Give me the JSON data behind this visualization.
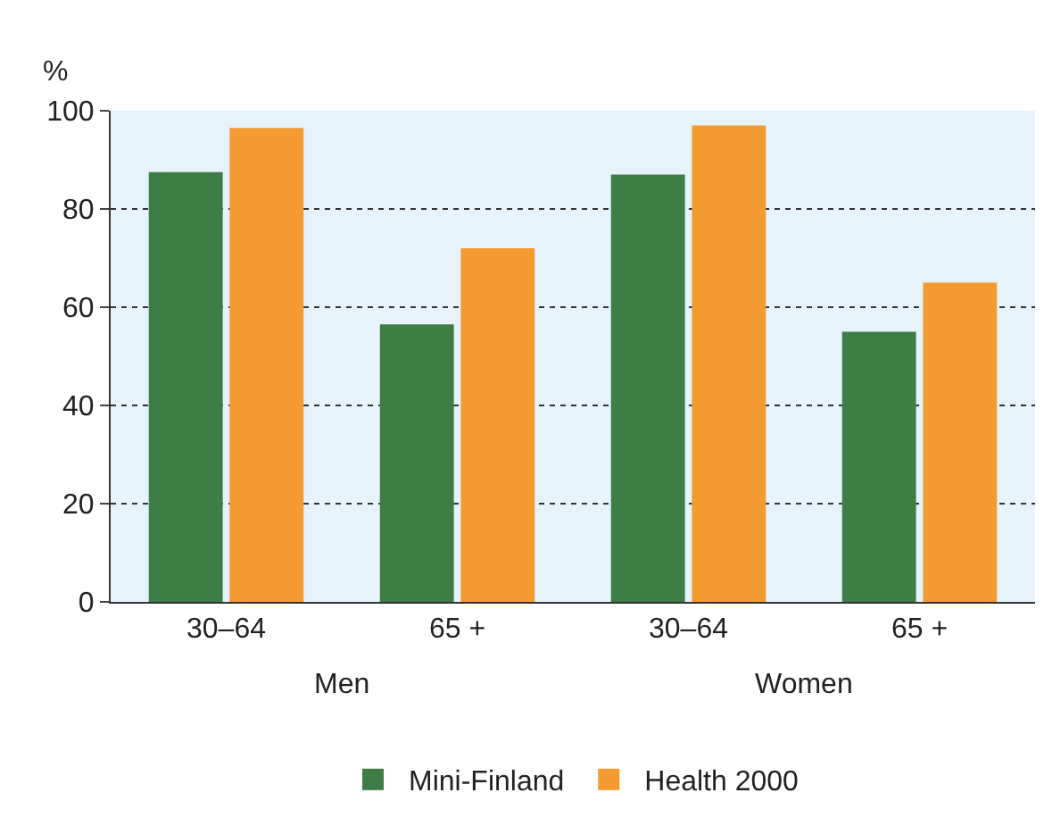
{
  "chart_data": {
    "type": "bar",
    "ylabel": "%",
    "categories": [
      "30–64",
      "65 +",
      "30–64",
      "65 +"
    ],
    "series": [
      {
        "name": "Mini-Finland",
        "color": "#3f7d46",
        "values": [
          87.5,
          56.5,
          87,
          55
        ]
      },
      {
        "name": "Health 2000",
        "color": "#f39a30",
        "values": [
          96.5,
          72,
          97,
          65
        ]
      }
    ],
    "annotations": [
      "Men",
      "Women"
    ],
    "ylim": [
      0,
      100
    ],
    "yticks": [
      0,
      20,
      40,
      60,
      80,
      100
    ],
    "grid": "y",
    "legend": "bottom"
  }
}
